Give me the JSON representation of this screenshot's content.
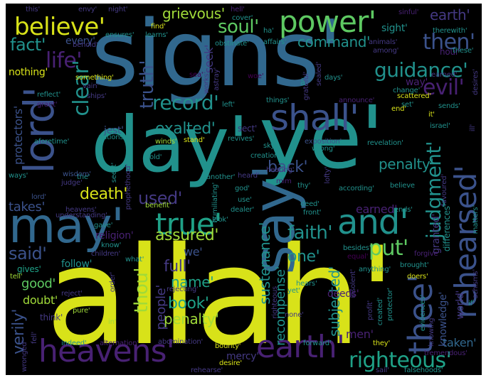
{
  "palette": {
    "yellow": "#d8e219",
    "lime": "#a0da39",
    "green": "#5ec962",
    "teal": "#21918c",
    "teal2": "#1fa187",
    "blue": "#31688e",
    "navy": "#3b528b",
    "indigo": "#443983",
    "purple": "#482173",
    "deep": "#440154"
  },
  "words": {
    "allah": "allah'",
    "signs": "signs'",
    "ye": "ye'",
    "day": "day'",
    "may": "may'",
    "say": "say'",
    "heavens": "heavens'",
    "earth_big": "earth'",
    "shall": "shall'",
    "power": "power'",
    "believe": "believe'",
    "lord": "lord'",
    "and": "and'",
    "true": "true'",
    "thee": "thee'",
    "rehearsed": "rehearsed'",
    "righteous": "righteous'",
    "judgment": "judgment'",
    "guidance": "guidance'",
    "evil": "evil'",
    "life": "life'",
    "soul": "soul'",
    "command": "command'",
    "then": "then'",
    "earth_top": "earth'",
    "fact": "fact'",
    "grievous": "grievous'",
    "record": "record'",
    "exalted": "exalted'",
    "clear": "clear'",
    "truth": "truth'",
    "death": "death'",
    "used": "used'",
    "put": "put'",
    "faith": "faith'",
    "assured": "assured'",
    "said": "said'",
    "one": "one'",
    "full": "full'",
    "name": "name'",
    "book": "book'",
    "penalty": "penalty'",
    "penalty2": "penalty'",
    "thou": "thou'",
    "sustenance": "sustenance'",
    "recompense": "recompense'",
    "subjected": "subjected'",
    "verily": "verily'",
    "good": "good'",
    "doubt": "doubt'",
    "back": "back'",
    "earned": "earned'",
    "taken": "taken'",
    "granted": "granted'",
    "mercy": "mercy'",
    "takes": "takes'",
    "nothing": "nothing'",
    "every": "every'",
    "sight": "sight'",
    "seek": "seek'",
    "protectors": "protectors'",
    "people": "people'",
    "religion": "religion'",
    "men": "men'",
    "knowledge": "knowledge'",
    "world": "world'",
    "we": "we'",
    "follow": "follow'",
    "deeds": "deeds'",
    "gives": "gives'",
    "think": "think'",
    "jest": "jest'",
    "sect": "sect'",
    "way": "way'",
    "hour": "hour'",
    "the": "the'",
    "lord_small": "lord'",
    "ways": "ways'",
    "wisdom": "wisdom'",
    "judge": "judge'",
    "nations": "nations'",
    "winds": "winds'",
    "stand": "stand'",
    "revives": "revives'",
    "exposition": "exposition'",
    "revelation": "revelation'",
    "creation": "creation'",
    "sky": "sky'",
    "israel": "israel'",
    "scattered": "scattered'",
    "forgive": "forgive'",
    "brought": "brought'",
    "anything": "anything'",
    "equal": "equal'",
    "besides": "besides'",
    "front": "front'",
    "according": "according'",
    "believe_small": "believe",
    "thy": "thy'",
    "deed": "deed'",
    "use": "use'",
    "god": "god'",
    "heard": "heard'",
    "another": "another'",
    "dealer": "dealer'",
    "hold": "hold'",
    "seest": "seest'",
    "prophethood": "prophethood'",
    "look": "look'",
    "benefit": "benefit'",
    "gave": "gave'",
    "children": "children'",
    "know": "know'",
    "what": "what'",
    "order": "order'",
    "rejecting": "rejecting'",
    "reject": "reject'",
    "tell": "tell'",
    "pure": "pure'",
    "in": "in'",
    "alternation": "alternation'",
    "indeed": "indeed'",
    "abomination": "abomination'",
    "bounty": "bounty'",
    "desire": "desire'",
    "rehearse": "rehearse'",
    "forward": "forward'",
    "they": "they'",
    "sail": "sail'",
    "falsehoods": "falsehoods'",
    "tremendous": "tremendous'",
    "evidences": "evidences'",
    "knowing": "knowing'",
    "favoured": "favoured'",
    "differences": "differences'",
    "matters": "matters'",
    "schisms": "schisms'",
    "if": "if'",
    "ill": "ill'",
    "desires": "desires'",
    "these": "these'",
    "therewith": "therewith'",
    "sinful": "sinful'",
    "hell": "hell'",
    "night": "night'",
    "envy": "envy'",
    "this": "this'",
    "find": "find'",
    "ensures": "ensures'",
    "learns": "learns'",
    "behold": "behold'",
    "obstinate": "obstinate'",
    "affairs": "affairs'",
    "ha": "ha'",
    "cover": "cover'",
    "animals": "animals'",
    "among": "among'",
    "sealed": "sealed'",
    "days": "days'",
    "earned2": "earned'",
    "change": "change'",
    "set": "set'",
    "sends": "sends'",
    "it": "it'",
    "end": "end'",
    "announce": "announce'",
    "things": "things'",
    "left": "left'",
    "grateful": "grateful'",
    "woe": "woe'",
    "lofty": "lofty'",
    "works": "works'",
    "astray": "astray'",
    "sea": "sea'",
    "something": "something'",
    "vain": "vain'",
    "ships": "ships'",
    "reflect": "reflect'",
    "grant": "grant'",
    "aforetime": "aforetime'",
    "wrong": "wrong'",
    "humiliating": "humiliating'",
    "hearing": "hearing'",
    "mim": "mim",
    "heavens_small": "heavens'",
    "understanding": "understanding'",
    "ends": "ends'",
    "hears": "hears'",
    "none": "none'",
    "yet": "yet'",
    "profit": "profit'",
    "created": "created'",
    "protector": "protector'",
    "insolent": "insolent'",
    "righteous_small": "righteous",
    "doers": "doers'",
    "fell": "fell'",
    "wronged": "wronged'",
    "a_grave": "à"
  }
}
